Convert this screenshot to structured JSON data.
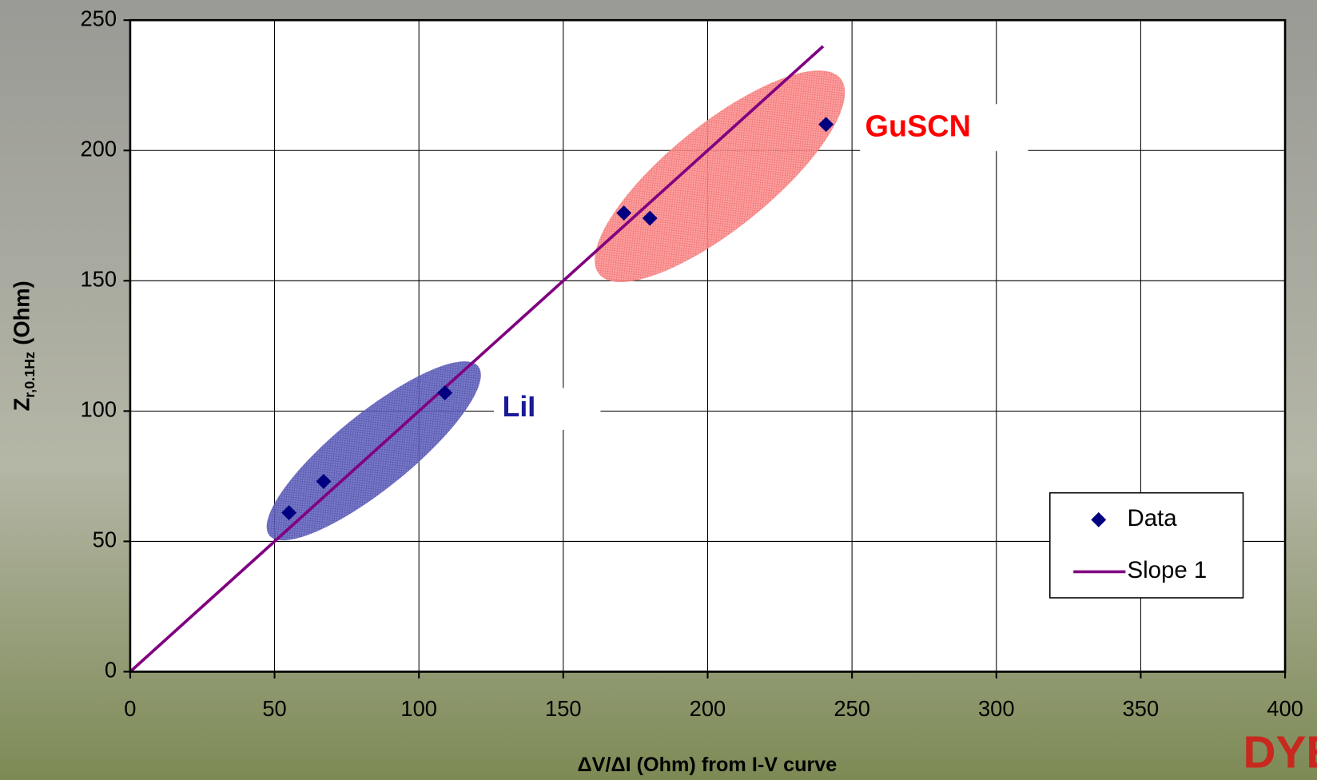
{
  "chart_data": {
    "type": "scatter",
    "x_label": "ΔV/ΔI (Ohm) from I-V curve",
    "y_label": {
      "main": "Z",
      "subscript": "r,0.1Hz",
      "unit": "(Ohm)"
    },
    "annotations": [
      {
        "text": "LiI",
        "color": "#1a1a99"
      },
      {
        "text": "GuSCN",
        "color": "#ff0000"
      }
    ],
    "logo": "DYES",
    "xlim": [
      0,
      400
    ],
    "xticks": [
      0,
      50,
      100,
      150,
      200,
      250,
      300,
      350,
      400
    ],
    "ylim": [
      0,
      250
    ],
    "yticks": [
      0,
      50,
      100,
      150,
      200,
      250
    ],
    "grid": true,
    "legend": "lower right",
    "series": [
      {
        "name": "Data",
        "type": "scatter",
        "color": "#000080",
        "x": [
          55,
          67,
          109,
          171,
          180,
          241
        ],
        "values": [
          61,
          73,
          107,
          176,
          174,
          210
        ]
      },
      {
        "name": "Slope 1",
        "type": "line",
        "color": "#800080",
        "x": [
          0,
          240
        ],
        "values": [
          0,
          240
        ]
      }
    ]
  }
}
